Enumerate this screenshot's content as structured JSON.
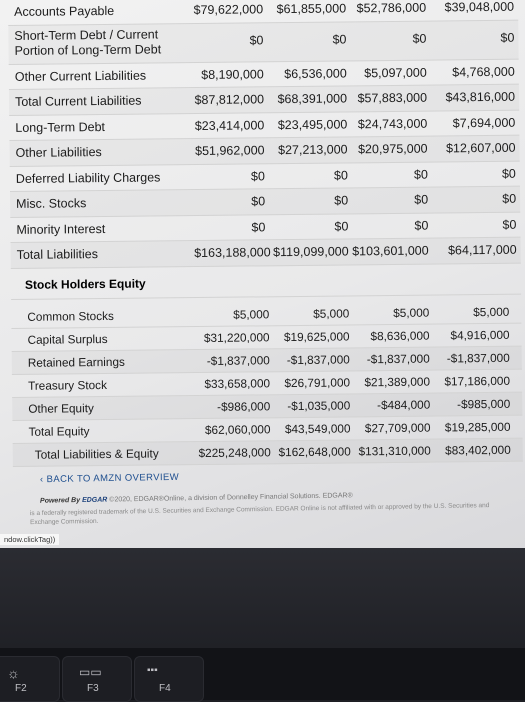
{
  "rows": [
    {
      "label": "Accounts Payable",
      "v": [
        "$79,622,000",
        "$61,855,000",
        "$52,786,000",
        "$39,048,000"
      ],
      "tall": false
    },
    {
      "label": "Short-Term Debt / Current Portion of Long-Term Debt",
      "v": [
        "$0",
        "$0",
        "$0",
        "$0"
      ],
      "tall": true
    },
    {
      "label": "Other Current Liabilities",
      "v": [
        "$8,190,000",
        "$6,536,000",
        "$5,097,000",
        "$4,768,000"
      ],
      "tall": false
    },
    {
      "label": "Total Current Liabilities",
      "v": [
        "$87,812,000",
        "$68,391,000",
        "$57,883,000",
        "$43,816,000"
      ],
      "tall": false
    },
    {
      "label": "Long-Term Debt",
      "v": [
        "$23,414,000",
        "$23,495,000",
        "$24,743,000",
        "$7,694,000"
      ],
      "tall": false
    },
    {
      "label": "Other Liabilities",
      "v": [
        "$51,962,000",
        "$27,213,000",
        "$20,975,000",
        "$12,607,000"
      ],
      "tall": false
    },
    {
      "label": "Deferred Liability Charges",
      "v": [
        "$0",
        "$0",
        "$0",
        "$0"
      ],
      "tall": false
    },
    {
      "label": "Misc. Stocks",
      "v": [
        "$0",
        "$0",
        "$0",
        "$0"
      ],
      "tall": false
    },
    {
      "label": "Minority Interest",
      "v": [
        "$0",
        "$0",
        "$0",
        "$0"
      ],
      "tall": false
    },
    {
      "label": "Total Liabilities",
      "v": [
        "$163,188,000",
        "$119,099,000",
        "$103,601,000",
        "$64,117,000"
      ],
      "tall": false
    }
  ],
  "equity_heading": "Stock Holders Equity",
  "equity_rows": [
    {
      "label": "Common Stocks",
      "v": [
        "$5,000",
        "$5,000",
        "$5,000",
        "$5,000"
      ]
    },
    {
      "label": "Capital Surplus",
      "v": [
        "$31,220,000",
        "$19,625,000",
        "$8,636,000",
        "$4,916,000"
      ]
    },
    {
      "label": "Retained Earnings",
      "v": [
        "-$1,837,000",
        "-$1,837,000",
        "-$1,837,000",
        "-$1,837,000"
      ]
    },
    {
      "label": "Treasury Stock",
      "v": [
        "$33,658,000",
        "$26,791,000",
        "$21,389,000",
        "$17,186,000"
      ]
    },
    {
      "label": "Other Equity",
      "v": [
        "-$986,000",
        "-$1,035,000",
        "-$484,000",
        "-$985,000"
      ]
    },
    {
      "label": "Total Equity",
      "v": [
        "$62,060,000",
        "$43,549,000",
        "$27,709,000",
        "$19,285,000"
      ]
    },
    {
      "label": "Total Liabilities & Equity",
      "v": [
        "$225,248,000",
        "$162,648,000",
        "$131,310,000",
        "$83,402,000"
      ]
    }
  ],
  "back_link": "BACK TO AMZN OVERVIEW",
  "powered_by": "Powered By",
  "brand": "EDGAR",
  "powered_rest": "©2020, EDGAR®Online, a division of Donnelley Financial Solutions. EDGAR®",
  "legal": "is a federally registered trademark of the U.S. Securities and Exchange Commission. EDGAR Online is not affiliated with or approved by the U.S. Securities and Exchange Commission.",
  "status_text": "ndow.clickTag))",
  "keys": [
    "F2",
    "F3",
    "F4"
  ]
}
